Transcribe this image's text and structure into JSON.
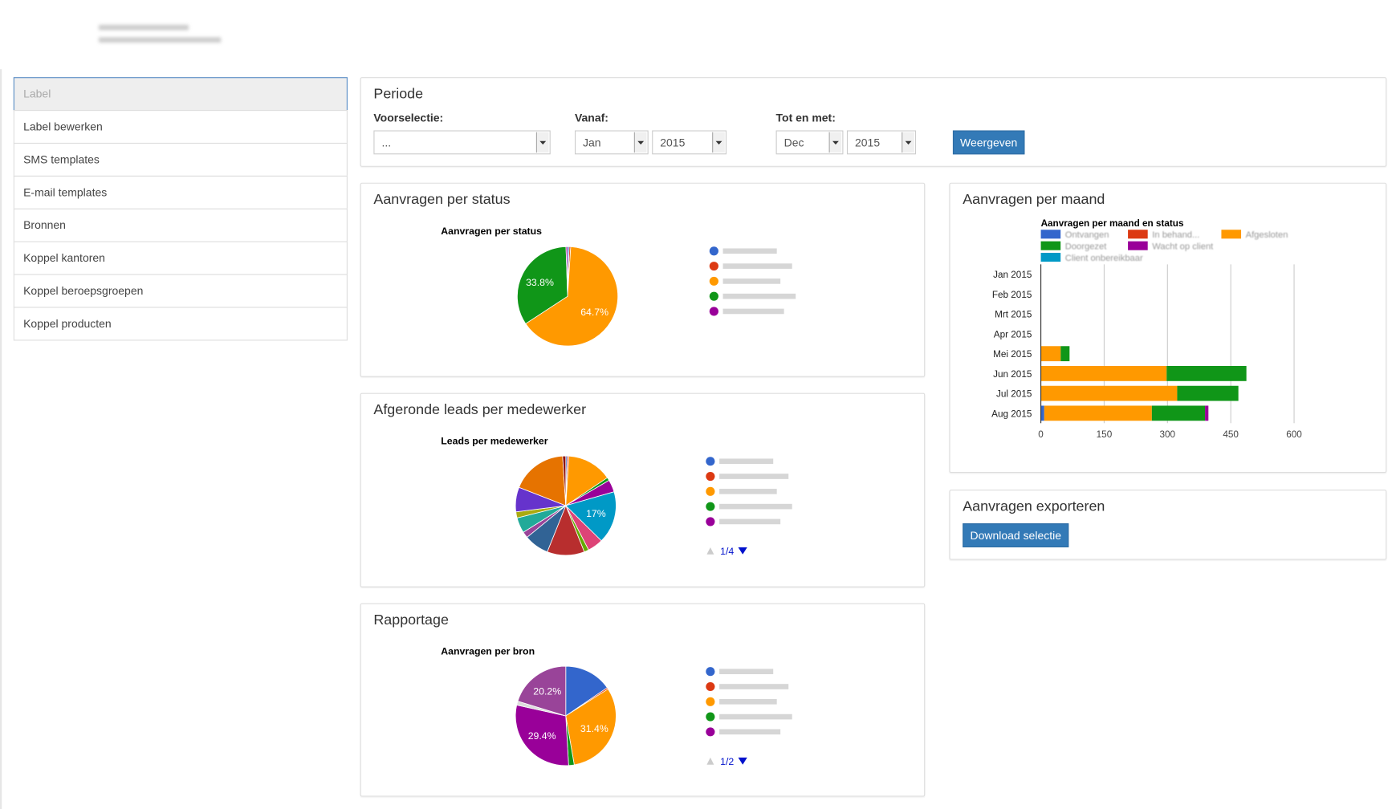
{
  "sidebar": {
    "items": [
      "Label",
      "Label bewerken",
      "SMS templates",
      "E-mail templates",
      "Bronnen",
      "Koppel kantoren",
      "Koppel beroepsgroepen",
      "Koppel producten"
    ]
  },
  "period": {
    "title": "Periode",
    "preset": {
      "label": "Voorselectie:",
      "value": "..."
    },
    "from": {
      "label": "Vanaf:",
      "month": "Jan",
      "year": "2015"
    },
    "to": {
      "label": "Tot en met:",
      "month": "Dec",
      "year": "2015"
    },
    "button": "Weergeven"
  },
  "status": {
    "heading": "Aanvragen per status",
    "chart": {
      "type": "pie",
      "title": "Aanvragen per status",
      "values": [
        0.5,
        0.5,
        64.7,
        33.8,
        0.5
      ],
      "value_labels": [
        null,
        null,
        "64.7%",
        "33.8%",
        null
      ],
      "colors": [
        "#3366cc",
        "#dc3912",
        "#ff9900",
        "#109618",
        "#990099"
      ]
    }
  },
  "leads": {
    "heading": "Afgeronde leads per medewerker",
    "chart": {
      "type": "pie",
      "title": "Leads per medewerker",
      "values": [
        0.5,
        0.5,
        14.5,
        1,
        4,
        17,
        5,
        1.5,
        12,
        8,
        2,
        5,
        2,
        8,
        18,
        1
      ],
      "value_labels": [
        null,
        null,
        null,
        null,
        null,
        "17%",
        null,
        null,
        null,
        null,
        null,
        null,
        null,
        null,
        null,
        null
      ],
      "colors": [
        "#3366cc",
        "#dc3912",
        "#ff9900",
        "#109618",
        "#990099",
        "#0099c6",
        "#dd4477",
        "#66aa00",
        "#b82e2e",
        "#316395",
        "#994499",
        "#22aa99",
        "#aaaa11",
        "#6633cc",
        "#e67300",
        "#8b0707"
      ],
      "pager": "1/4"
    }
  },
  "report": {
    "heading": "Rapportage",
    "chart": {
      "type": "pie",
      "title": "Aanvragen per bron",
      "values": [
        15.4,
        0.5,
        31.4,
        1.8,
        29.4,
        1.3,
        20.2
      ],
      "value_labels": [
        null,
        null,
        "31.4%",
        null,
        "29.4%",
        null,
        "20.2%"
      ],
      "colors": [
        "#3366cc",
        "#dc3912",
        "#ff9900",
        "#109618",
        "#990099",
        "#dddddd",
        "#994499"
      ],
      "pager": "1/2"
    }
  },
  "monthly": {
    "heading": "Aanvragen per maand",
    "chart": {
      "type": "bar",
      "orientation": "horizontal",
      "stacked": true,
      "title": "Aanvragen per maand en status",
      "categories": [
        "Jan 2015",
        "Feb 2015",
        "Mrt 2015",
        "Apr 2015",
        "Mei 2015",
        "Jun 2015",
        "Jul 2015",
        "Aug 2015"
      ],
      "series": [
        {
          "name": "Ontvangen",
          "color": "#3366cc",
          "values": [
            0,
            0,
            0,
            0,
            0,
            0,
            0,
            8
          ]
        },
        {
          "name": "In behand...",
          "color": "#dc3912",
          "values": [
            0,
            0,
            0,
            0,
            0,
            0,
            0,
            0
          ]
        },
        {
          "name": "Afgesloten",
          "color": "#ff9900",
          "values": [
            0,
            0,
            0,
            0,
            47,
            298,
            323,
            255
          ]
        },
        {
          "name": "Doorgezet",
          "color": "#109618",
          "values": [
            0,
            0,
            0,
            0,
            21,
            189,
            145,
            126
          ]
        },
        {
          "name": "Wacht op client",
          "color": "#990099",
          "values": [
            0,
            0,
            0,
            0,
            0,
            0,
            0,
            8
          ]
        },
        {
          "name": "Client onbereikbaar",
          "color": "#0099c6",
          "values": [
            0,
            0,
            0,
            0,
            0,
            0,
            0,
            0
          ]
        }
      ],
      "xlim": [
        0,
        600
      ],
      "xticks": [
        0,
        150,
        300,
        450,
        600
      ],
      "grid": true
    }
  },
  "export": {
    "heading": "Aanvragen exporteren",
    "button": "Download selectie"
  }
}
